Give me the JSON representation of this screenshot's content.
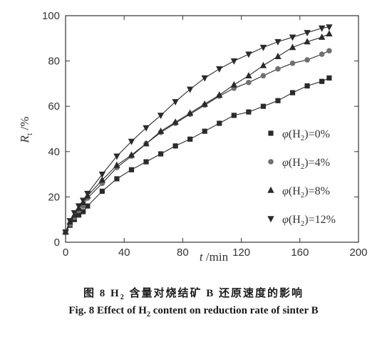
{
  "chart_data": {
    "type": "line",
    "xlabel_var": "t",
    "xlabel_unit": " /min",
    "ylabel_var": "R",
    "ylabel_sub": "t",
    "ylabel_unit": " /%",
    "xlim": [
      0,
      200
    ],
    "ylim": [
      0,
      100
    ],
    "xticks": [
      0,
      40,
      80,
      120,
      160,
      200
    ],
    "yticks": [
      0,
      20,
      40,
      60,
      80,
      100
    ],
    "grid": false,
    "legend_position": "right",
    "series": [
      {
        "name": "φ(H2)=0%",
        "marker": "square",
        "x": [
          0,
          3,
          6,
          9,
          12,
          15,
          25,
          35,
          45,
          55,
          65,
          75,
          85,
          95,
          105,
          115,
          125,
          135,
          145,
          155,
          165,
          175,
          180
        ],
        "y": [
          4.5,
          7.5,
          10,
          12,
          13.5,
          16,
          22.5,
          28,
          32,
          35.5,
          39,
          42.5,
          45.5,
          49,
          52.5,
          56,
          57.5,
          60,
          62.5,
          66,
          69,
          71,
          72.5
        ]
      },
      {
        "name": "φ(H2)=4%",
        "marker": "circle",
        "x": [
          0,
          3,
          6,
          9,
          12,
          15,
          25,
          35,
          45,
          55,
          65,
          75,
          85,
          95,
          105,
          115,
          125,
          135,
          145,
          155,
          165,
          175,
          180
        ],
        "y": [
          4.5,
          8,
          11,
          14,
          16,
          19.5,
          26,
          33,
          38,
          43.5,
          48.5,
          52.5,
          56.5,
          60.5,
          64.5,
          68,
          70.5,
          73.5,
          76.5,
          79,
          80.5,
          83,
          84.5
        ]
      },
      {
        "name": "φ(H2)=8%",
        "marker": "triangle-up",
        "x": [
          0,
          3,
          6,
          9,
          12,
          15,
          25,
          35,
          45,
          55,
          65,
          75,
          85,
          95,
          105,
          115,
          125,
          135,
          145,
          155,
          165,
          175,
          180
        ],
        "y": [
          4.5,
          9,
          12,
          15,
          17.5,
          20.5,
          27.5,
          34,
          38.5,
          43.5,
          49,
          53,
          57,
          61,
          65,
          69.5,
          73.5,
          78,
          82,
          86,
          88.5,
          90.5,
          92
        ]
      },
      {
        "name": "φ(H2)=12%",
        "marker": "triangle-down",
        "x": [
          0,
          3,
          6,
          9,
          12,
          15,
          25,
          35,
          45,
          55,
          65,
          75,
          85,
          95,
          105,
          115,
          125,
          135,
          145,
          155,
          165,
          175,
          180
        ],
        "y": [
          4.5,
          9.5,
          13,
          16,
          18.5,
          21.5,
          30,
          38,
          44.5,
          50.5,
          56,
          62,
          67.5,
          72.5,
          76.5,
          80,
          83,
          86,
          88.5,
          90.5,
          92.5,
          94.5,
          95
        ]
      }
    ]
  },
  "legend": [
    {
      "pre": "φ(H",
      "sub": "2",
      "post": ")=0%"
    },
    {
      "pre": "φ(H",
      "sub": "2",
      "post": ")=4%"
    },
    {
      "pre": "φ(H",
      "sub": "2",
      "post": ")=8%"
    },
    {
      "pre": "φ(H",
      "sub": "2",
      "post": ")=12%"
    }
  ],
  "caption": {
    "cn_prefix": "图 8   H",
    "cn_sub": "2",
    "cn_suffix": " 含量对烧结矿 B 还原速度的影响",
    "en_prefix": "Fig. 8   Effect of H",
    "en_sub": "2",
    "en_suffix": " content on reduction rate of sinter B"
  },
  "colors": {
    "series": "#2b2b2b",
    "marker_circle": "#707070",
    "axis": "#333333"
  }
}
